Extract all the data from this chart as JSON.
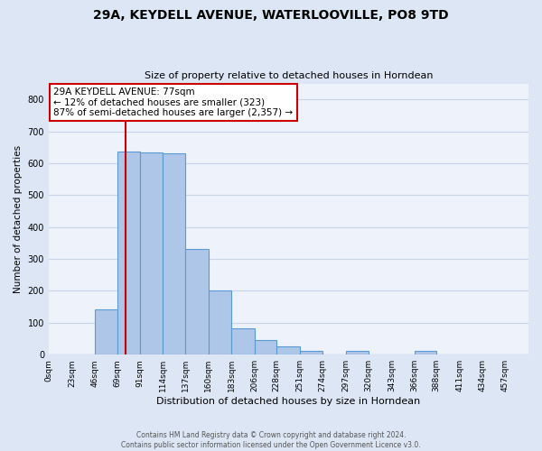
{
  "title": "29A, KEYDELL AVENUE, WATERLOOVILLE, PO8 9TD",
  "subtitle": "Size of property relative to detached houses in Horndean",
  "xlabel": "Distribution of detached houses by size in Horndean",
  "ylabel": "Number of detached properties",
  "bin_labels": [
    "0sqm",
    "23sqm",
    "46sqm",
    "69sqm",
    "91sqm",
    "114sqm",
    "137sqm",
    "160sqm",
    "183sqm",
    "206sqm",
    "228sqm",
    "251sqm",
    "274sqm",
    "297sqm",
    "320sqm",
    "343sqm",
    "366sqm",
    "388sqm",
    "411sqm",
    "434sqm",
    "457sqm"
  ],
  "bar_heights": [
    2,
    0,
    143,
    636,
    633,
    631,
    330,
    200,
    83,
    46,
    27,
    13,
    0,
    12,
    0,
    0,
    12,
    0,
    0,
    2,
    0
  ],
  "bar_color": "#aec6e8",
  "bar_edge_color": "#5b9bd5",
  "bg_color": "#dce6f5",
  "plot_bg_color": "#edf2fb",
  "grid_color": "#c8d4e8",
  "vline_x": 77,
  "vline_color": "#cc0000",
  "annotation_text": "29A KEYDELL AVENUE: 77sqm\n← 12% of detached houses are smaller (323)\n87% of semi-detached houses are larger (2,357) →",
  "annotation_box_color": "#ffffff",
  "annotation_box_edge": "#cc0000",
  "ylim": [
    0,
    850
  ],
  "yticks": [
    0,
    100,
    200,
    300,
    400,
    500,
    600,
    700,
    800
  ],
  "footer": "Contains HM Land Registry data © Crown copyright and database right 2024.\nContains public sector information licensed under the Open Government Licence v3.0.",
  "bin_edges": [
    0,
    23,
    46,
    69,
    91,
    114,
    137,
    160,
    183,
    206,
    228,
    251,
    274,
    297,
    320,
    343,
    366,
    388,
    411,
    434,
    457,
    480
  ]
}
